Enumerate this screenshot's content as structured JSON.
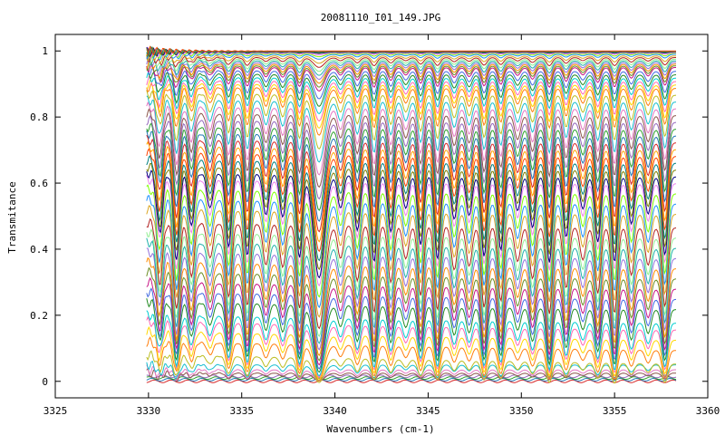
{
  "chart_data": {
    "type": "line",
    "title": "20081110_I01_149.JPG",
    "xlabel": "Wavenumbers (cm-1)",
    "ylabel": "Transmitance",
    "xlim": [
      3325,
      3360
    ],
    "ylim": [
      -0.05,
      1.05
    ],
    "x_ticks": [
      "3325",
      "3330",
      "3335",
      "3340",
      "3345",
      "3350",
      "3355",
      "3360"
    ],
    "y_ticks": [
      "0",
      "0.2",
      "0.4",
      "0.6",
      "0.8",
      "1"
    ],
    "grid": false,
    "legend": "none",
    "x_range_data": [
      3329.9,
      3358.3
    ],
    "absorption_lines": [
      3330.6,
      3331.5,
      3332.3,
      3333.3,
      3334.3,
      3335.3,
      3336.3,
      3337.2,
      3338.1,
      3339.15,
      3340.3,
      3341.2,
      3342.1,
      3343.0,
      3343.8,
      3344.6,
      3345.5,
      3346.4,
      3347.2,
      3348.0,
      3348.9,
      3349.8,
      3350.6,
      3351.5,
      3352.4,
      3353.3,
      3354.1,
      3355.0,
      3355.9,
      3356.8,
      3357.7
    ],
    "series_levels": [
      0.0,
      0.005,
      0.01,
      0.015,
      0.025,
      0.035,
      0.05,
      0.08,
      0.12,
      0.15,
      0.18,
      0.2,
      0.24,
      0.27,
      0.3,
      0.33,
      0.36,
      0.39,
      0.42,
      0.45,
      0.48,
      0.52,
      0.55,
      0.58,
      0.61,
      0.63,
      0.65,
      0.67,
      0.69,
      0.71,
      0.73,
      0.75,
      0.77,
      0.79,
      0.81,
      0.83,
      0.85,
      0.87,
      0.89,
      0.9,
      0.91,
      0.92,
      0.93,
      0.94,
      0.95,
      0.955,
      0.96,
      0.965,
      0.97,
      0.975,
      0.98,
      0.985,
      0.99,
      0.993,
      0.995,
      0.997,
      0.998,
      0.999,
      1.0
    ],
    "colors": [
      "#d62728",
      "#1f77b4",
      "#2ca02c",
      "#9467bd",
      "#8c564b",
      "#e377c2",
      "#17becf",
      "#bcbd22",
      "#ff7f0e",
      "#ffd700",
      "#ff69b4",
      "#00ced1",
      "#228b22",
      "#4169e1",
      "#c71585",
      "#6b8e23",
      "#ff8c00",
      "#9370db",
      "#20b2aa",
      "#90ee90",
      "#b22222",
      "#daa520",
      "#1e90ff",
      "#7fff00",
      "#ee82ee",
      "#000080",
      "#808000",
      "#008080",
      "#ff4500",
      "#ffa500"
    ]
  }
}
